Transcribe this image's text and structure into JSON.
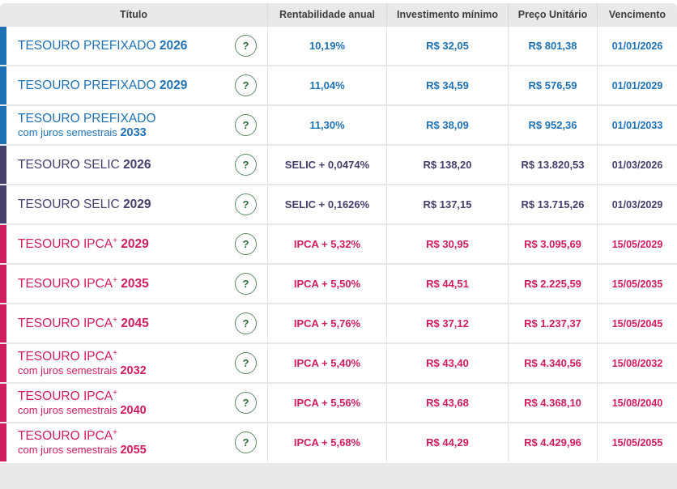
{
  "header": {
    "columns": {
      "title": "Título",
      "rate": "Rentabilidade anual",
      "min": "Investimento mínimo",
      "price": "Preço Unitário",
      "due": "Vencimento"
    }
  },
  "colors": {
    "prefixado": "#1f72b6",
    "selic": "#453f6c",
    "ipca": "#cf1d60",
    "header_bg": "#e9e9e9",
    "footer_bg": "#e9e9e9",
    "help_green": "#2f6a3f"
  },
  "help_icon_glyph": "?",
  "rows": [
    {
      "category": "prefixado",
      "name": "TESOURO PREFIXADO",
      "sup": "",
      "year": "2026",
      "sub": "",
      "sub_year": "",
      "rate": "10,19%",
      "min": "R$ 32,05",
      "price": "R$ 801,38",
      "maturity": "01/01/2026"
    },
    {
      "category": "prefixado",
      "name": "TESOURO PREFIXADO",
      "sup": "",
      "year": "2029",
      "sub": "",
      "sub_year": "",
      "rate": "11,04%",
      "min": "R$ 34,59",
      "price": "R$ 576,59",
      "maturity": "01/01/2029"
    },
    {
      "category": "prefixado",
      "name": "TESOURO PREFIXADO",
      "sup": "",
      "year": "",
      "sub": "com juros semestrais",
      "sub_year": "2033",
      "rate": "11,30%",
      "min": "R$ 38,09",
      "price": "R$ 952,36",
      "maturity": "01/01/2033"
    },
    {
      "category": "selic",
      "name": "TESOURO SELIC",
      "sup": "",
      "year": "2026",
      "sub": "",
      "sub_year": "",
      "rate": "SELIC + 0,0474%",
      "min": "R$ 138,20",
      "price": "R$ 13.820,53",
      "maturity": "01/03/2026"
    },
    {
      "category": "selic",
      "name": "TESOURO SELIC",
      "sup": "",
      "year": "2029",
      "sub": "",
      "sub_year": "",
      "rate": "SELIC + 0,1626%",
      "min": "R$ 137,15",
      "price": "R$ 13.715,26",
      "maturity": "01/03/2029"
    },
    {
      "category": "ipca",
      "name": "TESOURO IPCA",
      "sup": "+",
      "year": "2029",
      "sub": "",
      "sub_year": "",
      "rate": "IPCA + 5,32%",
      "min": "R$ 30,95",
      "price": "R$ 3.095,69",
      "maturity": "15/05/2029"
    },
    {
      "category": "ipca",
      "name": "TESOURO IPCA",
      "sup": "+",
      "year": "2035",
      "sub": "",
      "sub_year": "",
      "rate": "IPCA + 5,50%",
      "min": "R$ 44,51",
      "price": "R$ 2.225,59",
      "maturity": "15/05/2035"
    },
    {
      "category": "ipca",
      "name": "TESOURO IPCA",
      "sup": "+",
      "year": "2045",
      "sub": "",
      "sub_year": "",
      "rate": "IPCA + 5,76%",
      "min": "R$ 37,12",
      "price": "R$ 1.237,37",
      "maturity": "15/05/2045"
    },
    {
      "category": "ipca",
      "name": "TESOURO IPCA",
      "sup": "+",
      "year": "",
      "sub": "com juros semestrais",
      "sub_year": "2032",
      "rate": "IPCA + 5,40%",
      "min": "R$ 43,40",
      "price": "R$ 4.340,56",
      "maturity": "15/08/2032"
    },
    {
      "category": "ipca",
      "name": "TESOURO IPCA",
      "sup": "+",
      "year": "",
      "sub": "com juros semestrais",
      "sub_year": "2040",
      "rate": "IPCA + 5,56%",
      "min": "R$ 43,68",
      "price": "R$ 4.368,10",
      "maturity": "15/08/2040"
    },
    {
      "category": "ipca",
      "name": "TESOURO IPCA",
      "sup": "+",
      "year": "",
      "sub": "com juros semestrais",
      "sub_year": "2055",
      "rate": "IPCA + 5,68%",
      "min": "R$ 44,29",
      "price": "R$ 4.429,96",
      "maturity": "15/05/2055"
    }
  ]
}
